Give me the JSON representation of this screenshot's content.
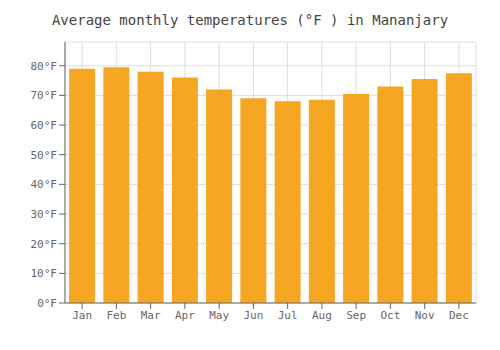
{
  "chart_data": {
    "type": "bar",
    "title": "Average monthly temperatures (°F ) in Mananjary",
    "categories": [
      "Jan",
      "Feb",
      "Mar",
      "Apr",
      "May",
      "Jun",
      "Jul",
      "Aug",
      "Sep",
      "Oct",
      "Nov",
      "Dec"
    ],
    "values": [
      79,
      79.5,
      78,
      76,
      72,
      69,
      68,
      68.5,
      70.5,
      73,
      75.5,
      77.5
    ],
    "color": "#F5A623",
    "ylim": [
      0,
      88
    ],
    "yticks": [
      {
        "value": 0,
        "label": "0°F"
      },
      {
        "value": 10,
        "label": "10°F"
      },
      {
        "value": 20,
        "label": "20°F"
      },
      {
        "value": 30,
        "label": "30°F"
      },
      {
        "value": 40,
        "label": "40°F"
      },
      {
        "value": 50,
        "label": "50°F"
      },
      {
        "value": 60,
        "label": "60°F"
      },
      {
        "value": 70,
        "label": "70°F"
      },
      {
        "value": 80,
        "label": "80°F"
      }
    ],
    "grid": true
  }
}
